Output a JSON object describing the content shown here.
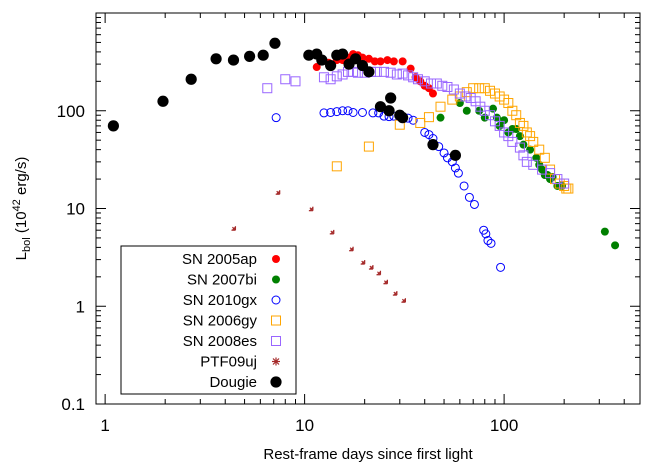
{
  "chart_data": {
    "type": "scatter",
    "title": "",
    "xlabel": "Rest-frame days since first light",
    "ylabel": {
      "main": "L",
      "sub": "bol",
      "tail": " (10",
      "sup": "42",
      "unit": " erg/s)"
    },
    "xscale": "log",
    "yscale": "log",
    "xlim": [
      0.9,
      480
    ],
    "ylim": [
      0.1,
      1000
    ],
    "xticks": [
      {
        "value": 1,
        "label": "1"
      },
      {
        "value": 10,
        "label": "10"
      },
      {
        "value": 100,
        "label": "100"
      }
    ],
    "yticks": [
      {
        "value": 0.1,
        "label": "0.1"
      },
      {
        "value": 1,
        "label": "1"
      },
      {
        "value": 10,
        "label": "10"
      },
      {
        "value": 100,
        "label": "100"
      }
    ],
    "grid": false,
    "legend_position": "bottom-left",
    "series": [
      {
        "name": "SN 2005ap",
        "color": "#ff0000",
        "marker": "filled-circle",
        "points": [
          [
            11.5,
            280
          ],
          [
            13.2,
            310
          ],
          [
            14.5,
            330
          ],
          [
            15.5,
            330
          ],
          [
            16.5,
            350
          ],
          [
            17.5,
            380
          ],
          [
            18.5,
            370
          ],
          [
            19.5,
            350
          ],
          [
            21,
            340
          ],
          [
            22.5,
            320
          ],
          [
            24,
            320
          ],
          [
            26,
            330
          ],
          [
            28,
            320
          ],
          [
            31,
            320
          ],
          [
            34,
            270
          ],
          [
            36,
            220
          ],
          [
            38,
            200
          ],
          [
            40,
            180
          ],
          [
            42,
            170
          ],
          [
            44,
            150
          ]
        ]
      },
      {
        "name": "SN 2007bi",
        "color": "#008000",
        "marker": "filled-circle",
        "points": [
          [
            48,
            85
          ],
          [
            60,
            120
          ],
          [
            65,
            100
          ],
          [
            75,
            100
          ],
          [
            80,
            85
          ],
          [
            88,
            105
          ],
          [
            92,
            85
          ],
          [
            95,
            70
          ],
          [
            100,
            80
          ],
          [
            105,
            60
          ],
          [
            110,
            65
          ],
          [
            115,
            65
          ],
          [
            120,
            55
          ],
          [
            125,
            45
          ],
          [
            135,
            40
          ],
          [
            145,
            33
          ],
          [
            150,
            28
          ],
          [
            155,
            25
          ],
          [
            160,
            22
          ],
          [
            165,
            22
          ],
          [
            170,
            20
          ],
          [
            175,
            21
          ],
          [
            185,
            17
          ],
          [
            195,
            17
          ],
          [
            320,
            5.8
          ],
          [
            360,
            4.2
          ]
        ]
      },
      {
        "name": "SN 2010gx",
        "color": "#0000ff",
        "marker": "open-circle",
        "points": [
          [
            7.2,
            85
          ],
          [
            12.5,
            95
          ],
          [
            13.5,
            96
          ],
          [
            14.5,
            98
          ],
          [
            15.5,
            100
          ],
          [
            16.5,
            100
          ],
          [
            17.5,
            96
          ],
          [
            19.5,
            96
          ],
          [
            22,
            95
          ],
          [
            23.5,
            95
          ],
          [
            25,
            88
          ],
          [
            26.5,
            87
          ],
          [
            28,
            88
          ],
          [
            30,
            87
          ],
          [
            33,
            84
          ],
          [
            35,
            80
          ],
          [
            40,
            60
          ],
          [
            42,
            57
          ],
          [
            44,
            52
          ],
          [
            47,
            43
          ],
          [
            50,
            37
          ],
          [
            52,
            33
          ],
          [
            55,
            30
          ],
          [
            57,
            26
          ],
          [
            59,
            23
          ],
          [
            63,
            17
          ],
          [
            67,
            13
          ],
          [
            71,
            11
          ],
          [
            79,
            6
          ],
          [
            81,
            5.5
          ],
          [
            83,
            4.7
          ],
          [
            86,
            4.4
          ],
          [
            96,
            2.5
          ]
        ]
      },
      {
        "name": "SN 2006gy",
        "color": "#ffa500",
        "marker": "open-square",
        "points": [
          [
            14.5,
            27
          ],
          [
            21,
            43
          ],
          [
            30,
            72
          ],
          [
            38,
            75
          ],
          [
            42,
            86
          ],
          [
            48,
            110
          ],
          [
            55,
            130
          ],
          [
            60,
            140
          ],
          [
            65,
            155
          ],
          [
            70,
            170
          ],
          [
            75,
            170
          ],
          [
            80,
            170
          ],
          [
            85,
            160
          ],
          [
            90,
            150
          ],
          [
            95,
            140
          ],
          [
            100,
            130
          ],
          [
            105,
            120
          ],
          [
            110,
            100
          ],
          [
            115,
            90
          ],
          [
            120,
            75
          ],
          [
            125,
            70
          ],
          [
            130,
            60
          ],
          [
            135,
            55
          ],
          [
            140,
            48
          ],
          [
            150,
            40
          ],
          [
            160,
            33
          ],
          [
            170,
            25
          ],
          [
            180,
            20
          ],
          [
            190,
            18
          ],
          [
            200,
            17
          ],
          [
            205,
            16
          ],
          [
            210,
            16
          ]
        ]
      },
      {
        "name": "SN 2008es",
        "color": "#9966ff",
        "marker": "open-square",
        "points": [
          [
            6.5,
            170
          ],
          [
            8,
            210
          ],
          [
            9,
            200
          ],
          [
            12.5,
            220
          ],
          [
            13.5,
            210
          ],
          [
            14.5,
            225
          ],
          [
            15.5,
            235
          ],
          [
            16.5,
            250
          ],
          [
            17.5,
            250
          ],
          [
            18.5,
            245
          ],
          [
            20,
            245
          ],
          [
            21.5,
            250
          ],
          [
            23,
            250
          ],
          [
            25,
            250
          ],
          [
            27,
            245
          ],
          [
            29,
            235
          ],
          [
            31,
            240
          ],
          [
            33,
            230
          ],
          [
            35,
            220
          ],
          [
            37,
            210
          ],
          [
            40,
            200
          ],
          [
            43,
            190
          ],
          [
            46,
            190
          ],
          [
            49,
            180
          ],
          [
            52,
            175
          ],
          [
            56,
            165
          ],
          [
            60,
            150
          ],
          [
            64,
            140
          ],
          [
            68,
            135
          ],
          [
            72,
            125
          ],
          [
            76,
            110
          ],
          [
            80,
            100
          ],
          [
            85,
            90
          ],
          [
            90,
            78
          ],
          [
            95,
            70
          ],
          [
            100,
            60
          ],
          [
            105,
            55
          ],
          [
            110,
            48
          ],
          [
            120,
            42
          ],
          [
            125,
            35
          ],
          [
            130,
            30
          ],
          [
            140,
            28
          ],
          [
            155,
            25
          ],
          [
            170,
            23
          ],
          [
            185,
            20
          ],
          [
            200,
            18
          ]
        ]
      },
      {
        "name": "PTF09uj",
        "color": "#a52a2a",
        "marker": "asterisk",
        "points": [
          [
            4.5,
            6
          ],
          [
            7.5,
            14
          ],
          [
            11,
            9.5
          ],
          [
            14,
            5.5
          ],
          [
            17.5,
            3.7
          ],
          [
            20,
            2.7
          ],
          [
            22,
            2.4
          ],
          [
            24,
            2.1
          ],
          [
            26,
            1.7
          ],
          [
            29,
            1.3
          ],
          [
            32,
            1.1
          ]
        ]
      },
      {
        "name": "Dougie",
        "color": "#000000",
        "marker": "big-filled-circle",
        "points": [
          [
            1.1,
            70
          ],
          [
            1.95,
            125
          ],
          [
            2.7,
            210
          ],
          [
            3.6,
            340
          ],
          [
            4.4,
            330
          ],
          [
            5.3,
            360
          ],
          [
            6.2,
            370
          ],
          [
            7.1,
            490
          ],
          [
            10.5,
            370
          ],
          [
            11.5,
            380
          ],
          [
            12.2,
            330
          ],
          [
            13.5,
            290
          ],
          [
            14.5,
            370
          ],
          [
            15.5,
            380
          ],
          [
            16.7,
            300
          ],
          [
            18,
            340
          ],
          [
            19.5,
            290
          ],
          [
            21,
            250
          ],
          [
            24,
            110
          ],
          [
            26.5,
            100
          ],
          [
            27,
            135
          ],
          [
            30,
            90
          ],
          [
            31,
            85
          ],
          [
            44,
            45
          ],
          [
            57,
            35
          ]
        ]
      }
    ]
  }
}
